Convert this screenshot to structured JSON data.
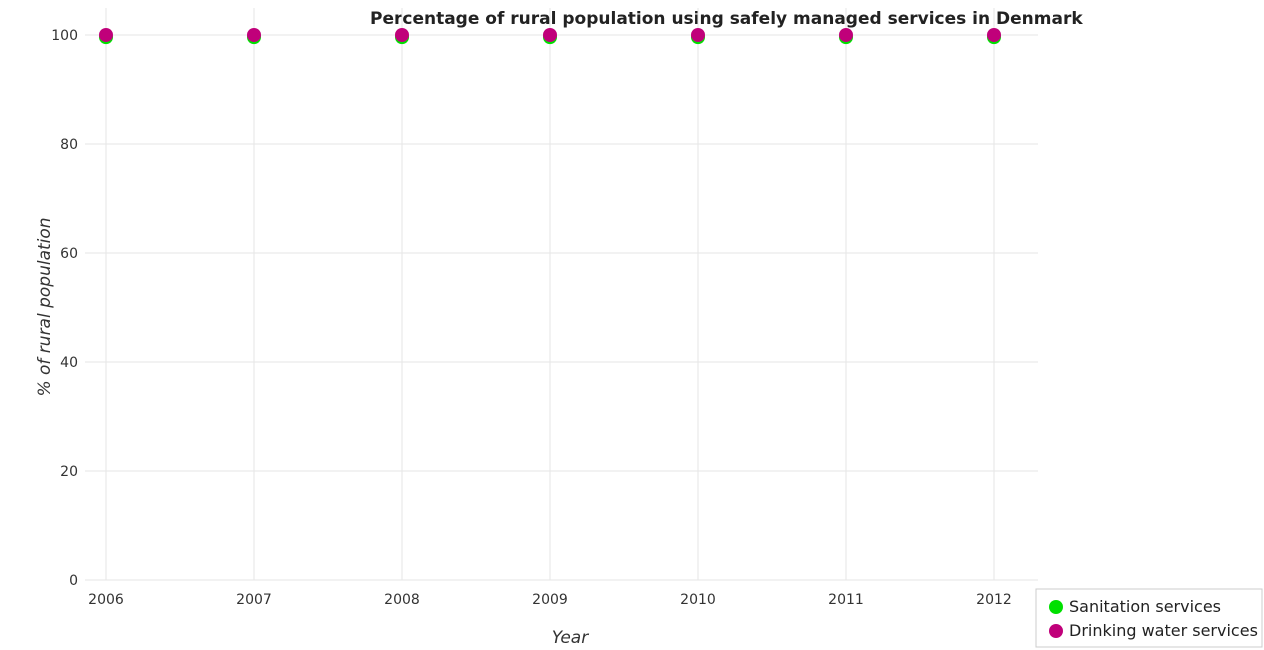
{
  "chart_data": {
    "type": "scatter",
    "title": "Percentage of rural population using safely managed services in Denmark",
    "xlabel": "Year",
    "ylabel": "% of rural population",
    "categories": [
      "2006",
      "2007",
      "2008",
      "2009",
      "2010",
      "2011",
      "2012"
    ],
    "y_ticks": [
      "0",
      "20",
      "40",
      "60",
      "80",
      "100"
    ],
    "ylim": [
      0,
      100
    ],
    "grid": true,
    "legend_position": "bottom-right",
    "series": [
      {
        "name": "Sanitation services",
        "color": "#00e000",
        "values": [
          99.6,
          99.6,
          99.6,
          99.6,
          99.6,
          99.6,
          99.6
        ]
      },
      {
        "name": "Drinking water services",
        "color": "#c0007a",
        "values": [
          100,
          100,
          100,
          100,
          100,
          100,
          100
        ]
      }
    ]
  }
}
